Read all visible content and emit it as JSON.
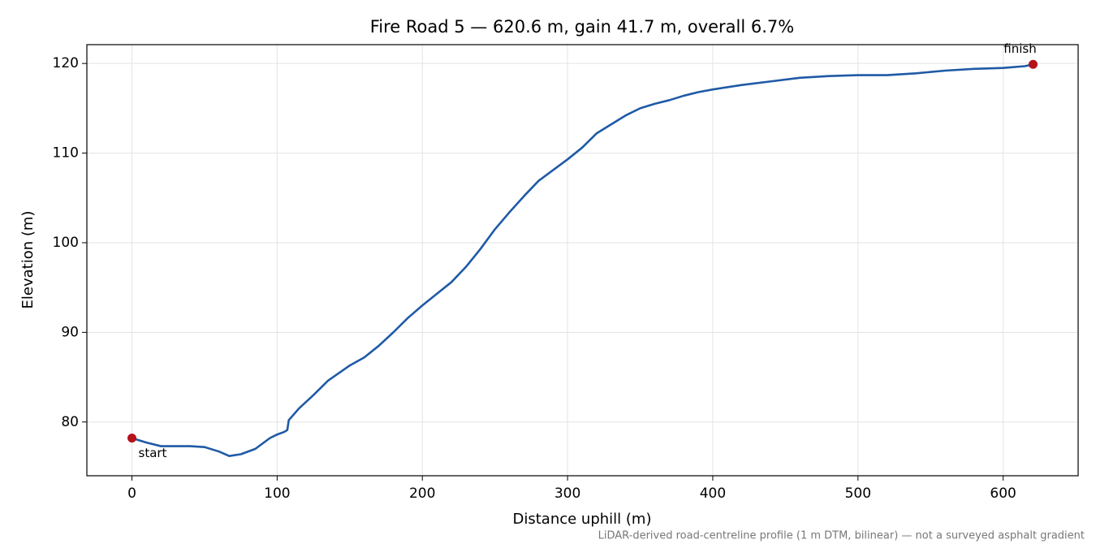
{
  "chart_data": {
    "type": "line",
    "title": "Fire Road 5 — 620.6 m, gain 41.7 m, overall 6.7%",
    "x_label": "Distance uphill (m)",
    "y_label": "Elevation (m)",
    "note": "LiDAR-derived road-centreline profile (1 m DTM, bilinear) — not a surveyed asphalt gradient",
    "x": [
      0,
      10,
      20,
      30,
      40,
      50,
      60,
      67,
      75,
      85,
      95,
      100,
      105,
      107,
      108,
      115,
      125,
      135,
      150,
      160,
      170,
      180,
      190,
      200,
      210,
      220,
      230,
      240,
      250,
      260,
      270,
      280,
      290,
      300,
      310,
      320,
      330,
      340,
      350,
      360,
      370,
      380,
      390,
      400,
      420,
      440,
      460,
      480,
      500,
      520,
      540,
      560,
      580,
      600,
      615,
      620.6
    ],
    "values": [
      78.2,
      77.7,
      77.3,
      77.3,
      77.3,
      77.2,
      76.7,
      76.2,
      76.4,
      77.0,
      78.2,
      78.6,
      78.9,
      79.1,
      80.2,
      81.5,
      83.0,
      84.6,
      86.3,
      87.2,
      88.5,
      90.0,
      91.6,
      93.0,
      94.3,
      95.6,
      97.3,
      99.3,
      101.5,
      103.4,
      105.2,
      106.9,
      108.1,
      109.3,
      110.6,
      112.2,
      113.2,
      114.2,
      115.0,
      115.5,
      115.9,
      116.4,
      116.8,
      117.1,
      117.6,
      118.0,
      118.4,
      118.6,
      118.7,
      118.7,
      118.9,
      119.2,
      119.4,
      119.5,
      119.7,
      119.9
    ],
    "color": "#1f5aa6",
    "endpoint_color": "#b5121b",
    "start_label": "start",
    "finish_label": "finish",
    "xlim": [
      -31.03,
      651.63
    ],
    "ylim": [
      74.0,
      122.1
    ],
    "xticks": [
      0,
      100,
      200,
      300,
      400,
      500,
      600
    ],
    "yticks": [
      80,
      90,
      100,
      110,
      120
    ],
    "grid": true
  }
}
